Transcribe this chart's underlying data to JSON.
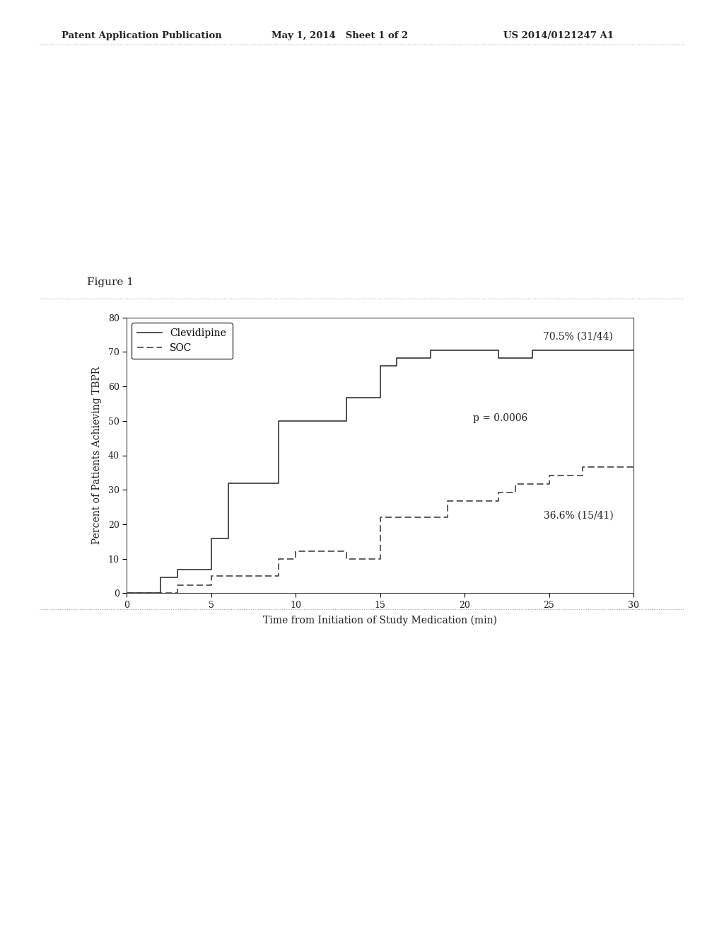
{
  "title_header": "Patent Application Publication",
  "title_date": "May 1, 2014   Sheet 1 of 2",
  "title_patent": "US 2014/0121247 A1",
  "figure_label": "Figure 1",
  "xlabel": "Time from Initiation of Study Medication (min)",
  "ylabel": "Percent of Patients Achieving TBPR",
  "xlim": [
    0,
    30
  ],
  "ylim": [
    0,
    80
  ],
  "xticks": [
    0,
    5,
    10,
    15,
    20,
    25,
    30
  ],
  "yticks": [
    0,
    10,
    20,
    30,
    40,
    50,
    60,
    70,
    80
  ],
  "clevidipine_x": [
    0,
    2,
    2,
    3,
    3,
    5,
    5,
    6,
    6,
    9,
    9,
    13,
    13,
    15,
    15,
    16,
    16,
    18,
    18,
    22,
    22,
    24,
    24,
    30
  ],
  "clevidipine_y": [
    0,
    0,
    4.5,
    4.5,
    6.8,
    6.8,
    15.9,
    15.9,
    31.8,
    31.8,
    50.0,
    50.0,
    56.8,
    56.8,
    65.9,
    65.9,
    68.2,
    68.2,
    70.5,
    70.5,
    68.2,
    68.2,
    70.5,
    70.5
  ],
  "soc_x": [
    0,
    3,
    3,
    5,
    5,
    9,
    9,
    10,
    10,
    13,
    13,
    15,
    15,
    19,
    19,
    22,
    22,
    23,
    23,
    25,
    25,
    27,
    27,
    30
  ],
  "soc_y": [
    0,
    0,
    2.4,
    2.4,
    4.9,
    4.9,
    9.8,
    9.8,
    12.2,
    12.2,
    9.8,
    9.8,
    22.0,
    22.0,
    26.8,
    26.8,
    29.3,
    29.3,
    31.7,
    31.7,
    34.1,
    34.1,
    36.6,
    36.6
  ],
  "annotation_clev": "70.5% (31/44)",
  "annotation_soc": "36.6% (15/41)",
  "annotation_p": "p = 0.0006",
  "bg_color": "#ffffff",
  "line_color": "#333333",
  "header_color": "#222222",
  "separator_color": "#999999",
  "header_fontsize": 9.5,
  "axis_fontsize": 10,
  "tick_fontsize": 9,
  "annot_fontsize": 10,
  "legend_fontsize": 10,
  "figure_label_fontsize": 11
}
